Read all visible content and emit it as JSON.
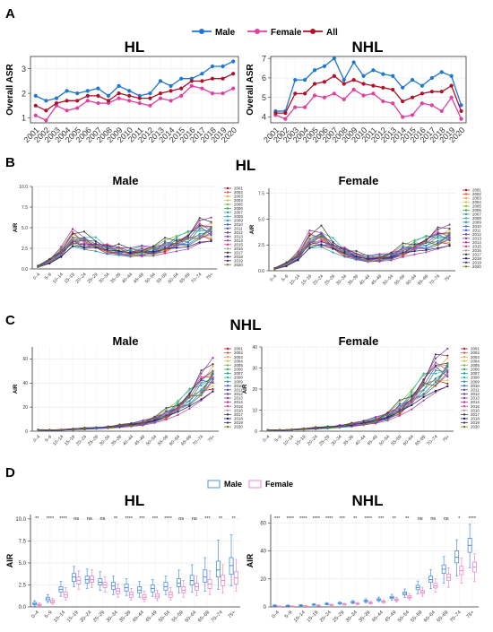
{
  "colors": {
    "male": "#1f77d4",
    "female": "#e0409f",
    "all": "#b0102a",
    "box_male": "#4a90e2",
    "box_female": "#e88ac8",
    "years": [
      "#b2182b",
      "#d6604d",
      "#e6a15c",
      "#c9c94a",
      "#7fbf3f",
      "#3aa656",
      "#2ca089",
      "#2ab3b3",
      "#2b8cbe",
      "#3a62c4",
      "#4d4fc0",
      "#6a3fb5",
      "#8e3aa8",
      "#b3399a",
      "#d1418b",
      "#a0a0a0",
      "#404040",
      "#1a1a6e",
      "#5a2a82",
      "#7a7a2a"
    ]
  },
  "panels": {
    "A": "A",
    "B": "B",
    "C": "C",
    "D": "D"
  },
  "section_titles": {
    "B": "HL",
    "C": "NHL"
  },
  "chart_data": [
    {
      "id": "A-HL",
      "type": "line",
      "panel_label": "A",
      "title": "HL",
      "ylabel": "Overall ASR",
      "x": [
        "2001",
        "2002",
        "2003",
        "2004",
        "2005",
        "2006",
        "2007",
        "2008",
        "2009",
        "2010",
        "2011",
        "2012",
        "2013",
        "2014",
        "2015",
        "2016",
        "2017",
        "2018",
        "2019",
        "2020"
      ],
      "ylim": [
        0.8,
        3.5
      ],
      "yticks": [
        1,
        2,
        3
      ],
      "legend": [
        "Male",
        "Female",
        "All"
      ],
      "series": [
        {
          "name": "Male",
          "values": [
            1.9,
            1.7,
            1.8,
            2.1,
            2.0,
            2.1,
            2.2,
            1.9,
            2.3,
            2.1,
            1.9,
            2.0,
            2.5,
            2.3,
            2.6,
            2.6,
            2.8,
            3.1,
            3.1,
            3.3
          ]
        },
        {
          "name": "Female",
          "values": [
            1.1,
            0.9,
            1.5,
            1.3,
            1.4,
            1.7,
            1.6,
            1.6,
            1.8,
            1.7,
            1.6,
            1.5,
            1.8,
            1.7,
            1.9,
            2.3,
            2.2,
            2.0,
            2.0,
            2.2
          ]
        },
        {
          "name": "All",
          "values": [
            1.5,
            1.3,
            1.6,
            1.7,
            1.7,
            1.9,
            1.9,
            1.7,
            2.0,
            1.9,
            1.8,
            1.8,
            2.0,
            2.1,
            2.2,
            2.5,
            2.5,
            2.6,
            2.6,
            2.8
          ]
        }
      ]
    },
    {
      "id": "A-NHL",
      "type": "line",
      "title": "NHL",
      "ylabel": "Overall ASR",
      "x": [
        "2001",
        "2002",
        "2003",
        "2004",
        "2005",
        "2006",
        "2007",
        "2008",
        "2009",
        "2010",
        "2011",
        "2012",
        "2013",
        "2014",
        "2015",
        "2016",
        "2017",
        "2018",
        "2019",
        "2020"
      ],
      "ylim": [
        3.7,
        7.1
      ],
      "yticks": [
        4,
        5,
        6,
        7
      ],
      "series": [
        {
          "name": "Male",
          "values": [
            4.3,
            4.3,
            5.9,
            5.9,
            6.4,
            6.6,
            7.0,
            5.9,
            6.8,
            6.1,
            6.4,
            6.2,
            6.1,
            5.5,
            5.9,
            5.6,
            6.0,
            6.3,
            6.1,
            4.6
          ]
        },
        {
          "name": "Female",
          "values": [
            4.1,
            3.9,
            4.5,
            4.5,
            5.1,
            5.0,
            5.2,
            4.9,
            5.4,
            5.1,
            5.2,
            4.8,
            4.7,
            4.0,
            4.1,
            4.7,
            4.6,
            4.3,
            5.0,
            3.9
          ]
        },
        {
          "name": "All",
          "values": [
            4.2,
            4.2,
            5.2,
            5.2,
            5.7,
            5.8,
            6.1,
            5.7,
            5.9,
            5.7,
            5.6,
            5.5,
            5.4,
            4.8,
            5.0,
            5.2,
            5.3,
            5.3,
            5.6,
            4.3
          ]
        }
      ]
    },
    {
      "id": "B-Male",
      "type": "line",
      "panel_label": "B",
      "title": "Male",
      "ylabel": "AIR",
      "categories": [
        "0–4",
        "5–9",
        "10–14",
        "15–19",
        "20–24",
        "25–29",
        "30–34",
        "35–39",
        "40–44",
        "45–49",
        "50–54",
        "55–59",
        "60–64",
        "65–69",
        "70–74",
        "75+"
      ],
      "ylim": [
        0,
        10
      ],
      "yticks": [
        0.0,
        2.5,
        5.0,
        7.5,
        10.0
      ],
      "ytick_labels": [
        "0.0",
        "2.5",
        "5.0",
        "7.5",
        "10.0"
      ],
      "legend_years": [
        "2001",
        "2002",
        "2003",
        "2004",
        "2005",
        "2006",
        "2007",
        "2008",
        "2009",
        "2010",
        "2011",
        "2012",
        "2013",
        "2014",
        "2015",
        "2016",
        "2017",
        "2018",
        "2019",
        "2020"
      ],
      "base_values": [
        0.3,
        0.9,
        2.0,
        3.6,
        3.2,
        2.9,
        2.4,
        2.2,
        1.9,
        2.1,
        2.2,
        2.7,
        3.1,
        3.5,
        4.4,
        4.6
      ]
    },
    {
      "id": "B-Female",
      "type": "line",
      "title": "Female",
      "ylabel": "AIR",
      "categories": [
        "0–4",
        "5–9",
        "10–14",
        "15–19",
        "20–24",
        "25–29",
        "30–34",
        "35–39",
        "40–44",
        "45–49",
        "50–54",
        "55–59",
        "60–64",
        "65–69",
        "70–74",
        "75+"
      ],
      "ylim": [
        0,
        8
      ],
      "yticks": [
        0.0,
        2.5,
        5.0,
        7.5
      ],
      "ytick_labels": [
        "0.0",
        "2.5",
        "5.0",
        "7.5"
      ],
      "legend_years": [
        "2001",
        "2002",
        "2003",
        "2004",
        "2005",
        "2006",
        "2007",
        "2008",
        "2009",
        "2010",
        "2011",
        "2012",
        "2013",
        "2014",
        "2015",
        "2016",
        "2017",
        "2018",
        "2019",
        "2020"
      ],
      "base_values": [
        0.2,
        0.6,
        1.4,
        2.9,
        3.1,
        2.4,
        1.8,
        1.4,
        1.1,
        1.2,
        1.4,
        1.9,
        2.3,
        2.6,
        3.0,
        3.3
      ]
    },
    {
      "id": "C-Male",
      "type": "line",
      "panel_label": "C",
      "title": "Male",
      "ylabel": "AIR",
      "categories": [
        "0–4",
        "5–9",
        "10–14",
        "15–19",
        "20–24",
        "25–29",
        "30–34",
        "35–39",
        "40–44",
        "45–49",
        "50–54",
        "55–59",
        "60–64",
        "65–69",
        "70–74",
        "75+"
      ],
      "ylim": [
        0,
        70
      ],
      "yticks": [
        0,
        20,
        40,
        60
      ],
      "ytick_labels": [
        "0",
        "20",
        "40",
        "60"
      ],
      "legend_years": [
        "2001",
        "2002",
        "2003",
        "2004",
        "2005",
        "2006",
        "2007",
        "2008",
        "2009",
        "2010",
        "2011",
        "2012",
        "2013",
        "2014",
        "2015",
        "2016",
        "2017",
        "2018",
        "2019",
        "2020"
      ],
      "base_values": [
        1.0,
        0.9,
        1.1,
        1.6,
        2.1,
        2.6,
        3.2,
        4.1,
        5.0,
        6.6,
        9.5,
        13.8,
        19.5,
        27.0,
        36.0,
        45.0
      ]
    },
    {
      "id": "C-Female",
      "type": "line",
      "title": "Female",
      "ylabel": "AIR",
      "categories": [
        "0–4",
        "5–9",
        "10–14",
        "15–19",
        "20–24",
        "25–29",
        "30–34",
        "35–39",
        "40–44",
        "45–49",
        "50–54",
        "55–59",
        "60–64",
        "65–69",
        "70–74",
        "75+"
      ],
      "ylim": [
        0,
        40
      ],
      "yticks": [
        0,
        10,
        20,
        30,
        40
      ],
      "ytick_labels": [
        "0",
        "10",
        "20",
        "30",
        "40"
      ],
      "legend_years": [
        "2001",
        "2002",
        "2003",
        "2004",
        "2005",
        "2006",
        "2007",
        "2008",
        "2009",
        "2010",
        "2011",
        "2012",
        "2013",
        "2014",
        "2015",
        "2016",
        "2017",
        "2018",
        "2019",
        "2020"
      ],
      "base_values": [
        0.5,
        0.5,
        0.7,
        1.0,
        1.4,
        1.8,
        2.3,
        2.9,
        3.7,
        5.0,
        7.0,
        10.5,
        15.0,
        21.0,
        26.0,
        29.0
      ]
    },
    {
      "id": "D-HL",
      "type": "box",
      "panel_label": "D",
      "title": "HL",
      "ylabel": "AIR",
      "legend": [
        "Male",
        "Female"
      ],
      "categories": [
        "0–4",
        "5–9",
        "10–14",
        "15–19",
        "20–24",
        "25–29",
        "30–34",
        "35–39",
        "40–44",
        "45–49",
        "50–54",
        "55–59",
        "60–64",
        "65–69",
        "70–74",
        "75+"
      ],
      "significance": [
        "**",
        "****",
        "****",
        "ns",
        "ns",
        "ns",
        "**",
        "****",
        "***",
        "***",
        "****",
        "ns",
        "ns",
        "***",
        "**",
        "**"
      ],
      "ylim": [
        0,
        10.5
      ],
      "yticks": [
        0.0,
        2.5,
        5.0,
        7.5,
        10.0
      ],
      "ytick_labels": [
        "0.0",
        "2.5",
        "5.0",
        "7.5",
        "10.0"
      ],
      "male": [
        {
          "min": 0.1,
          "q1": 0.25,
          "median": 0.35,
          "q3": 0.5,
          "max": 0.7
        },
        {
          "min": 0.5,
          "q1": 0.7,
          "median": 0.9,
          "q3": 1.1,
          "max": 1.4
        },
        {
          "min": 1.2,
          "q1": 1.7,
          "median": 2.0,
          "q3": 2.3,
          "max": 2.9
        },
        {
          "min": 2.3,
          "q1": 2.9,
          "median": 3.4,
          "q3": 3.8,
          "max": 4.6
        },
        {
          "min": 2.1,
          "q1": 2.7,
          "median": 3.1,
          "q3": 3.5,
          "max": 4.3
        },
        {
          "min": 1.9,
          "q1": 2.5,
          "median": 2.8,
          "q3": 3.2,
          "max": 4.0
        },
        {
          "min": 1.4,
          "q1": 2.0,
          "median": 2.4,
          "q3": 2.8,
          "max": 3.5
        },
        {
          "min": 1.3,
          "q1": 1.8,
          "median": 2.2,
          "q3": 2.6,
          "max": 3.2
        },
        {
          "min": 1.1,
          "q1": 1.6,
          "median": 1.9,
          "q3": 2.3,
          "max": 2.9
        },
        {
          "min": 1.2,
          "q1": 1.7,
          "median": 2.1,
          "q3": 2.5,
          "max": 3.1
        },
        {
          "min": 1.4,
          "q1": 1.9,
          "median": 2.3,
          "q3": 2.8,
          "max": 3.5
        },
        {
          "min": 1.6,
          "q1": 2.3,
          "median": 2.7,
          "q3": 3.2,
          "max": 4.2
        },
        {
          "min": 1.7,
          "q1": 2.5,
          "median": 3.0,
          "q3": 3.6,
          "max": 4.8
        },
        {
          "min": 1.8,
          "q1": 2.8,
          "median": 3.4,
          "q3": 4.2,
          "max": 5.6
        },
        {
          "min": 2.0,
          "q1": 3.4,
          "median": 4.2,
          "q3": 5.2,
          "max": 7.6
        },
        {
          "min": 2.4,
          "q1": 3.7,
          "median": 4.7,
          "q3": 5.6,
          "max": 8.2
        }
      ],
      "female": [
        {
          "min": 0.05,
          "q1": 0.15,
          "median": 0.22,
          "q3": 0.3,
          "max": 0.45
        },
        {
          "min": 0.3,
          "q1": 0.45,
          "median": 0.6,
          "q3": 0.75,
          "max": 1.0
        },
        {
          "min": 0.8,
          "q1": 1.1,
          "median": 1.4,
          "q3": 1.7,
          "max": 2.2
        },
        {
          "min": 2.0,
          "q1": 2.6,
          "median": 3.0,
          "q3": 3.4,
          "max": 4.1
        },
        {
          "min": 2.2,
          "q1": 2.8,
          "median": 3.1,
          "q3": 3.5,
          "max": 4.2
        },
        {
          "min": 1.7,
          "q1": 2.2,
          "median": 2.5,
          "q3": 2.8,
          "max": 3.4
        },
        {
          "min": 1.1,
          "q1": 1.5,
          "median": 1.8,
          "q3": 2.1,
          "max": 2.6
        },
        {
          "min": 0.8,
          "q1": 1.1,
          "median": 1.4,
          "q3": 1.7,
          "max": 2.1
        },
        {
          "min": 0.6,
          "q1": 0.9,
          "median": 1.1,
          "q3": 1.4,
          "max": 1.8
        },
        {
          "min": 0.7,
          "q1": 1.0,
          "median": 1.2,
          "q3": 1.5,
          "max": 1.9
        },
        {
          "min": 0.8,
          "q1": 1.1,
          "median": 1.4,
          "q3": 1.7,
          "max": 2.2
        },
        {
          "min": 1.1,
          "q1": 1.6,
          "median": 1.9,
          "q3": 2.3,
          "max": 3.0
        },
        {
          "min": 1.3,
          "q1": 1.9,
          "median": 2.3,
          "q3": 2.7,
          "max": 3.5
        },
        {
          "min": 1.4,
          "q1": 2.1,
          "median": 2.6,
          "q3": 3.1,
          "max": 4.1
        },
        {
          "min": 1.6,
          "q1": 2.4,
          "median": 3.0,
          "q3": 3.6,
          "max": 4.8
        },
        {
          "min": 1.8,
          "q1": 2.6,
          "median": 3.3,
          "q3": 4.0,
          "max": 5.4
        }
      ]
    },
    {
      "id": "D-NHL",
      "type": "box",
      "title": "NHL",
      "ylabel": "AIR",
      "categories": [
        "0–4",
        "5–9",
        "10–14",
        "15–19",
        "20–24",
        "25–29",
        "30–34",
        "35–39",
        "40–44",
        "45–49",
        "50–54",
        "55–59",
        "60–64",
        "65–69",
        "70–74",
        "75+"
      ],
      "significance": [
        "***",
        "****",
        "****",
        "****",
        "****",
        "***",
        "**",
        "****",
        "***",
        "**",
        "**",
        "ns",
        "ns",
        "ns",
        "*",
        "****"
      ],
      "ylim": [
        0,
        66
      ],
      "yticks": [
        0,
        20,
        40,
        60
      ],
      "ytick_labels": [
        "0",
        "20",
        "40",
        "60"
      ],
      "male": [
        {
          "min": 0.5,
          "q1": 0.8,
          "median": 1.0,
          "q3": 1.2,
          "max": 1.5
        },
        {
          "min": 0.5,
          "q1": 0.7,
          "median": 0.9,
          "q3": 1.1,
          "max": 1.4
        },
        {
          "min": 0.6,
          "q1": 0.9,
          "median": 1.1,
          "q3": 1.3,
          "max": 1.7
        },
        {
          "min": 1.0,
          "q1": 1.4,
          "median": 1.6,
          "q3": 1.9,
          "max": 2.4
        },
        {
          "min": 1.4,
          "q1": 1.8,
          "median": 2.1,
          "q3": 2.5,
          "max": 3.1
        },
        {
          "min": 1.8,
          "q1": 2.3,
          "median": 2.6,
          "q3": 3.0,
          "max": 3.7
        },
        {
          "min": 2.3,
          "q1": 2.9,
          "median": 3.3,
          "q3": 3.8,
          "max": 4.6
        },
        {
          "min": 3.0,
          "q1": 3.7,
          "median": 4.2,
          "q3": 4.8,
          "max": 5.8
        },
        {
          "min": 3.8,
          "q1": 4.6,
          "median": 5.1,
          "q3": 5.8,
          "max": 7.0
        },
        {
          "min": 4.8,
          "q1": 6.0,
          "median": 6.7,
          "q3": 7.5,
          "max": 9.0
        },
        {
          "min": 6.8,
          "q1": 8.5,
          "median": 9.5,
          "q3": 10.6,
          "max": 12.8
        },
        {
          "min": 9.5,
          "q1": 12.3,
          "median": 13.8,
          "q3": 15.4,
          "max": 18.5
        },
        {
          "min": 13.0,
          "q1": 17.5,
          "median": 19.5,
          "q3": 22.0,
          "max": 26.5
        },
        {
          "min": 17.0,
          "q1": 24.0,
          "median": 27.0,
          "q3": 30.0,
          "max": 36.0
        },
        {
          "min": 22.0,
          "q1": 31.5,
          "median": 35.5,
          "q3": 40.0,
          "max": 48.0
        },
        {
          "min": 28.0,
          "q1": 39.0,
          "median": 44.0,
          "q3": 49.0,
          "max": 59.0
        }
      ],
      "female": [
        {
          "min": 0.2,
          "q1": 0.4,
          "median": 0.5,
          "q3": 0.6,
          "max": 0.8
        },
        {
          "min": 0.2,
          "q1": 0.4,
          "median": 0.5,
          "q3": 0.6,
          "max": 0.8
        },
        {
          "min": 0.3,
          "q1": 0.5,
          "median": 0.7,
          "q3": 0.8,
          "max": 1.1
        },
        {
          "min": 0.6,
          "q1": 0.8,
          "median": 1.0,
          "q3": 1.2,
          "max": 1.5
        },
        {
          "min": 0.9,
          "q1": 1.2,
          "median": 1.4,
          "q3": 1.6,
          "max": 2.0
        },
        {
          "min": 1.2,
          "q1": 1.5,
          "median": 1.8,
          "q3": 2.1,
          "max": 2.6
        },
        {
          "min": 1.5,
          "q1": 2.0,
          "median": 2.3,
          "q3": 2.6,
          "max": 3.2
        },
        {
          "min": 2.0,
          "q1": 2.5,
          "median": 2.9,
          "q3": 3.3,
          "max": 4.0
        },
        {
          "min": 2.6,
          "q1": 3.3,
          "median": 3.7,
          "q3": 4.2,
          "max": 5.0
        },
        {
          "min": 3.6,
          "q1": 4.5,
          "median": 5.0,
          "q3": 5.6,
          "max": 6.8
        },
        {
          "min": 5.0,
          "q1": 6.3,
          "median": 7.0,
          "q3": 7.9,
          "max": 9.5
        },
        {
          "min": 7.5,
          "q1": 9.5,
          "median": 10.5,
          "q3": 11.8,
          "max": 14.0
        },
        {
          "min": 10.5,
          "q1": 13.5,
          "median": 15.0,
          "q3": 16.8,
          "max": 20.0
        },
        {
          "min": 14.0,
          "q1": 18.8,
          "median": 21.0,
          "q3": 23.5,
          "max": 28.0
        },
        {
          "min": 17.0,
          "q1": 23.0,
          "median": 26.0,
          "q3": 29.0,
          "max": 35.0
        },
        {
          "min": 18.0,
          "q1": 25.0,
          "median": 28.5,
          "q3": 32.0,
          "max": 38.0
        }
      ]
    }
  ]
}
